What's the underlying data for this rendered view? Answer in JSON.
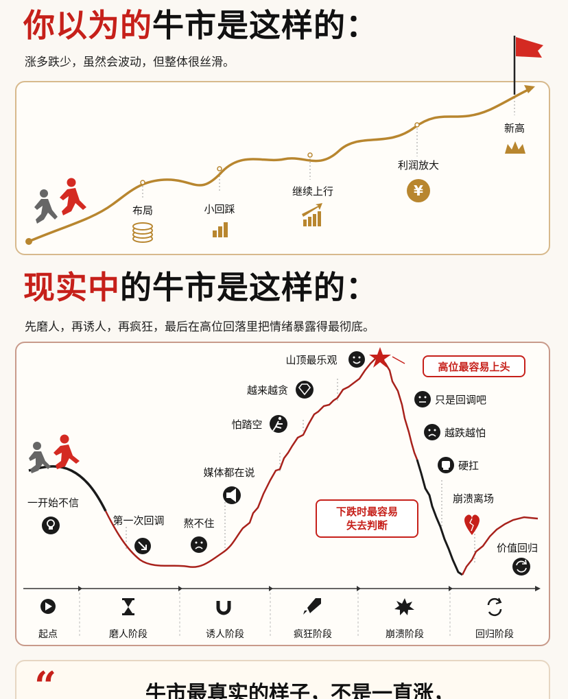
{
  "section1": {
    "title_red": "你以为的",
    "title_black": "牛市是这样的：",
    "subtitle": "涨多跌少，虽然会波动，但整体很丝滑。",
    "milestones": [
      {
        "label": "布局",
        "icon": "coins-stack-icon"
      },
      {
        "label": "小回踩",
        "icon": "bar-chart-icon"
      },
      {
        "label": "继续上行",
        "icon": "rising-bars-icon"
      },
      {
        "label": "利润放大",
        "icon": "yen-coin-icon"
      },
      {
        "label": "新高",
        "icon": "crown-icon"
      }
    ]
  },
  "section2": {
    "title_red": "现实中",
    "title_black": "的牛市是这样的：",
    "subtitle": "先磨人，再诱人，再疯狂，最后在高位回落里把情绪暴露得最彻底。",
    "labels": [
      {
        "label": "一开始不信",
        "icon": "lightbulb-icon"
      },
      {
        "label": "第一次回调",
        "icon": "down-arrow-icon"
      },
      {
        "label": "熬不住",
        "icon": "sad-face-icon"
      },
      {
        "label": "媒体都在说",
        "icon": "megaphone-icon"
      },
      {
        "label": "怕踏空",
        "icon": "runner-icon"
      },
      {
        "label": "越来越贪",
        "icon": "diamond-icon"
      },
      {
        "label": "山顶最乐观",
        "icon": "smile-face-icon"
      },
      {
        "label": "只是回调吧",
        "icon": "neutral-face-icon"
      },
      {
        "label": "越跌越怕",
        "icon": "worried-face-icon"
      },
      {
        "label": "硬扛",
        "icon": "fist-icon"
      },
      {
        "label": "崩溃离场",
        "icon": "broken-heart-icon"
      },
      {
        "label": "价值回归",
        "icon": "refresh-icon"
      }
    ],
    "callout_top": "高位最容易上头",
    "callout_mid_line1": "下跌时最容易",
    "callout_mid_line2": "失去判断",
    "stages": [
      {
        "label": "起点",
        "icon": "play-icon"
      },
      {
        "label": "磨人阶段",
        "icon": "hourglass-icon"
      },
      {
        "label": "诱人阶段",
        "icon": "magnet-icon"
      },
      {
        "label": "疯狂阶段",
        "icon": "rocket-icon"
      },
      {
        "label": "崩溃阶段",
        "icon": "explosion-icon"
      },
      {
        "label": "回归阶段",
        "icon": "cycle-icon"
      }
    ]
  },
  "quote": {
    "mark": "“",
    "text": "牛市最真实的样子，不是一直涨，"
  },
  "colors": {
    "accent_red": "#c6201a",
    "gold": "#b8862f",
    "dark_line": "#1a1a1a"
  }
}
